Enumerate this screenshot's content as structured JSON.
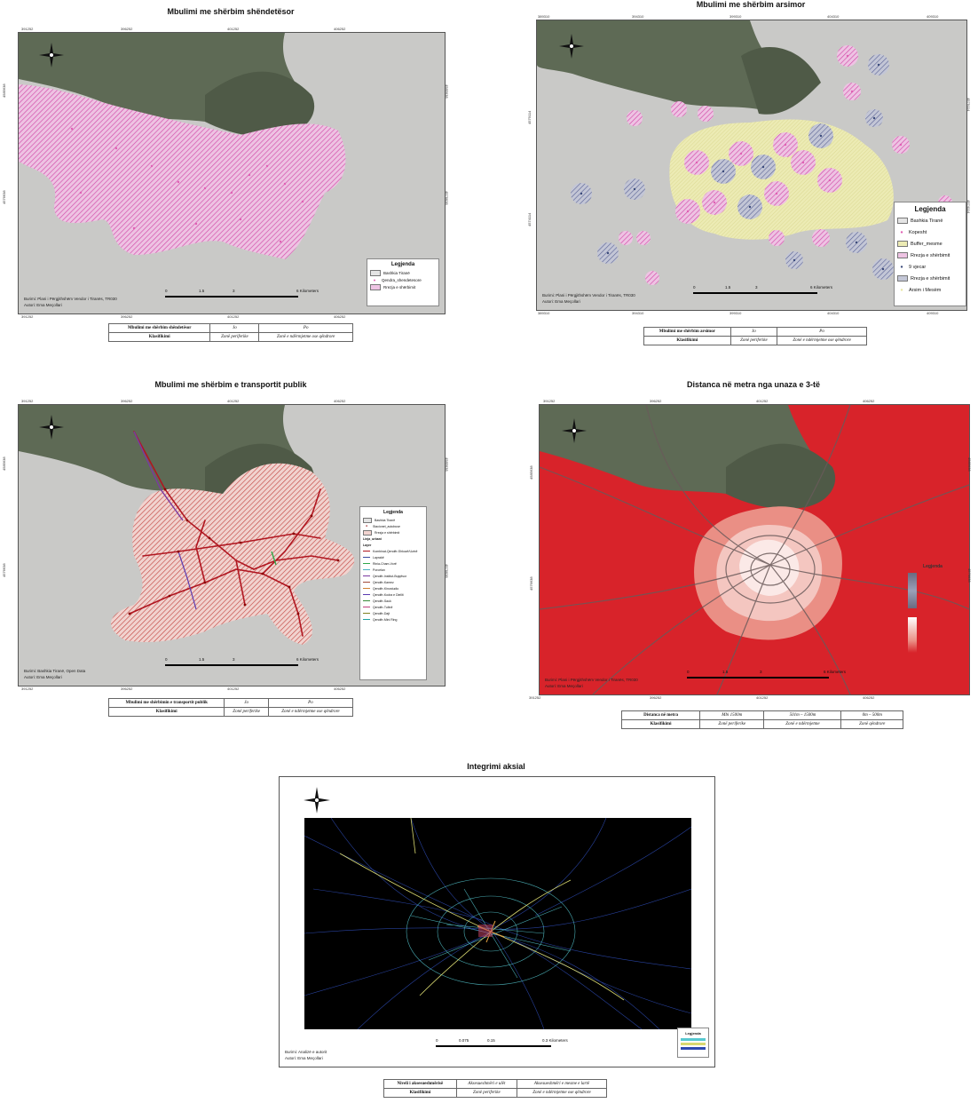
{
  "maps": {
    "health": {
      "title": "Mbulimi me shërbim shëndetësor",
      "coords_top": [
        "391252",
        "396252",
        "401252",
        "406252"
      ],
      "coords_bottom": [
        "391252",
        "396252",
        "401252",
        "406252"
      ],
      "coords_left": [
        "4585638",
        "4576638"
      ],
      "coords_right": [
        "4585638",
        "4576638"
      ],
      "legend_title": "Legjenda",
      "legend_items": [
        "Bashkia Tiranë",
        "Qendra_shendetesore",
        "Rrezja e shërbimit"
      ],
      "source": "Burimi: Plani i Përgjithshëm Vendor i Tiranës, TR030",
      "author": "Autori: Ema Meçollari",
      "scale_labels": [
        "0",
        "1.5",
        "3",
        "6 Kilometers"
      ],
      "table": {
        "row1_label": "Mbulimi me shërbim shëndetësor",
        "row1_vals": [
          "Jo",
          "Po"
        ],
        "row2_label": "Klasifikimi",
        "row2_vals": [
          "Zonë periferike",
          "Zonë e ndërmjetme ose qëndrore"
        ]
      }
    },
    "education": {
      "title": "Mbulimi me shërbim arsimor",
      "coords_top": [
        "389310",
        "394310",
        "399310",
        "404310",
        "409310"
      ],
      "coords_bottom": [
        "389310",
        "394310",
        "399310",
        "404310",
        "409310"
      ],
      "coords_left": [
        "4579114",
        "4574114"
      ],
      "coords_right": [
        "4579114",
        "4574114"
      ],
      "legend_title": "Legjenda",
      "legend_items": [
        "Bashkia Tiranë",
        "Kopesht",
        "Buffer_mesme",
        "Rrezja e shërbimit",
        "9 vjecar",
        "Rrezja e shërbimit",
        "Arsim i Mesëm"
      ],
      "source": "Burimi: Plani i Përgjithshëm Vendor i Tiranës, TR030",
      "author": "Autori: Ema Meçollari",
      "scale_labels": [
        "0",
        "1.5",
        "3",
        "6 Kilometers"
      ],
      "table": {
        "row1_label": "Mbulimi me shërbim arsimor",
        "row1_vals": [
          "Jo",
          "Po"
        ],
        "row2_label": "Klasifikimi",
        "row2_vals": [
          "Zonë periferike",
          "Zonë e ndërmjetme ose qëndrore"
        ]
      }
    },
    "transport": {
      "title": "Mbulimi me shërbim e transportit publik",
      "coords_top": [
        "391252",
        "396252",
        "401252",
        "406252"
      ],
      "coords_bottom": [
        "391252",
        "396252",
        "401252",
        "406252"
      ],
      "coords_left": [
        "4585638",
        "4576638"
      ],
      "coords_right": [
        "4585638",
        "4576638"
      ],
      "legend_title": "Legjenda",
      "legend_items": [
        "Bashkia Tiranë",
        "Stacionet_autobuse",
        "Rrezja e shërbimit",
        "Linja_urbani",
        "Layer",
        "Kombinat-Qendër-Shkozë/Uzinë",
        "Laprakë",
        "Rinia-Cham-Vorë",
        "Porcelan",
        "Qendër-Institut-Bujqësor",
        "Qendër-Kamez",
        "Qendër-Kinostudio",
        "Qendër-Kodra e Diellit",
        "Qendër-Sauk",
        "Qendër-Tufinë",
        "Qendër-Dajt",
        "Qendër-Mini Ring"
      ],
      "source": "Burimi: Bashkia Tiranë, Open Data",
      "author": "Autori: Ema Meçollari",
      "scale_labels": [
        "0",
        "1.5",
        "3",
        "6 Kilometers"
      ],
      "table": {
        "row1_label": "Mbulimi me shërbimin e transportit publik",
        "row1_vals": [
          "Jo",
          "Po"
        ],
        "row2_label": "Klasifikimi",
        "row2_vals": [
          "Zonë periferike",
          "Zonë e ndërmjetme ose qëndrore"
        ]
      }
    },
    "distance": {
      "title": "Distanca në metra nga unaza e 3-të",
      "coords_top": [
        "391252",
        "396252",
        "401252",
        "406252"
      ],
      "coords_bottom": [
        "391252",
        "396252",
        "401252",
        "406252"
      ],
      "coords_left": [
        "4585638",
        "4576638"
      ],
      "coords_right": [
        "4585638",
        "4576638"
      ],
      "legend_title": "Legjenda",
      "source": "Burimi: Plani i Përgjithshëm Vendor i Tiranës, TR030",
      "author": "Autori: Ema Meçollari",
      "scale_labels": [
        "0",
        "1.5",
        "3",
        "6 Kilometers"
      ],
      "table": {
        "row1_label": "Distanca në metra",
        "row1_vals": [
          "Mbi 1500m",
          "501m – 1500m",
          "0m – 500m"
        ],
        "row2_label": "Klasifikimi",
        "row2_vals": [
          "Zonë periferike",
          "Zonë e ndërmjetme",
          "Zonë qëndrore"
        ]
      }
    },
    "axial": {
      "title": "Integrimi aksial",
      "source": "Burimi: Analizë e autorit",
      "author": "Autori: Ema Meçollari",
      "scale_labels": [
        "0",
        "0.075",
        "0.15",
        "0.3 Kilometers"
      ],
      "legend_title": "Legjenda",
      "table": {
        "row1_label": "Niveli i aksesueshmërisë",
        "row1_vals": [
          "Aksesueshmëri e ulët",
          "Aksesueshmëri e mesme e lartë"
        ],
        "row2_label": "Klasifikimi",
        "row2_vals": [
          "Zonë periferike",
          "Zonë e ndërmjetme ose qëndrore"
        ]
      }
    }
  },
  "colors": {
    "forest": "#5e6a55",
    "land": "#c9c9c7",
    "pink": "#e05fb3",
    "red": "#d8232a",
    "navy": "#3a4a7a",
    "yellow": "#e8e6a0",
    "axial_bg": "#000000"
  }
}
